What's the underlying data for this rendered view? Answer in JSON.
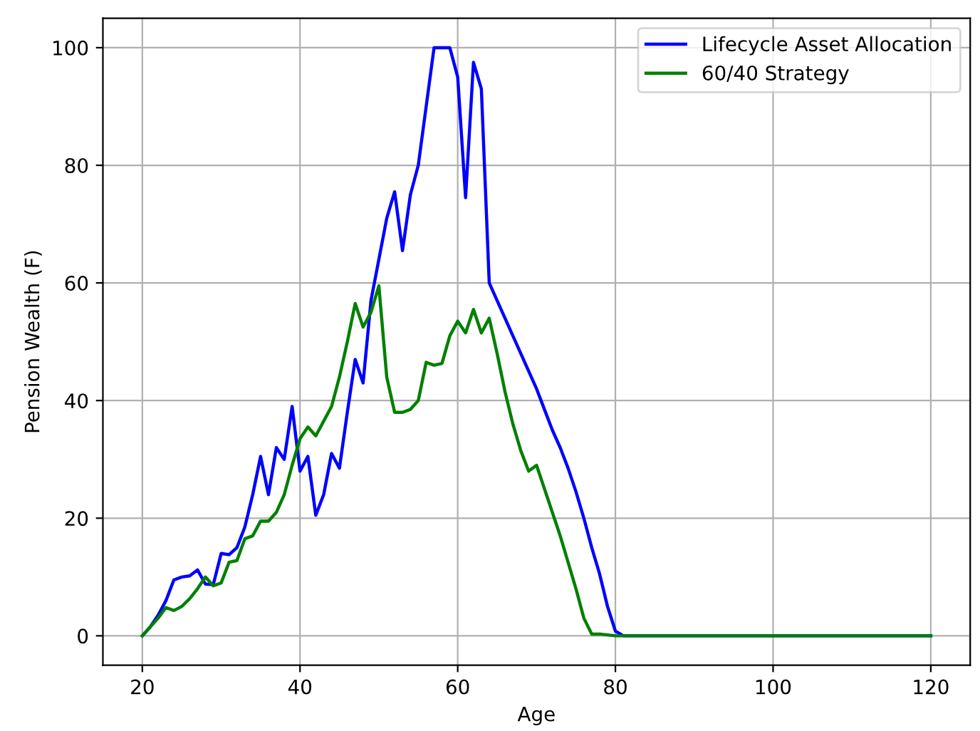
{
  "chart_data": {
    "type": "line",
    "xlabel": "Age",
    "ylabel": "Pension Wealth (F)",
    "xlim": [
      15,
      125
    ],
    "ylim": [
      -5,
      105
    ],
    "xticks": [
      20,
      40,
      60,
      80,
      100,
      120
    ],
    "yticks": [
      0,
      20,
      40,
      60,
      80,
      100
    ],
    "grid": true,
    "legend": "top right",
    "marker": "none",
    "line_style": "solid",
    "series": [
      {
        "name": "Lifecycle Asset Allocation",
        "color": "#0000ff",
        "x": [
          20,
          21,
          22,
          23,
          24,
          25,
          26,
          27,
          28,
          29,
          30,
          31,
          32,
          33,
          34,
          35,
          36,
          37,
          38,
          39,
          40,
          41,
          42,
          43,
          44,
          45,
          46,
          47,
          48,
          49,
          50,
          51,
          52,
          53,
          54,
          55,
          56,
          57,
          58,
          59,
          60,
          61,
          62,
          63,
          64,
          65,
          66,
          67,
          68,
          69,
          70,
          71,
          72,
          73,
          74,
          75,
          76,
          77,
          78,
          79,
          80,
          81,
          120
        ],
        "values": [
          0,
          1.5,
          3.5,
          6,
          9.5,
          10,
          10.2,
          11.2,
          8.8,
          8.7,
          14,
          13.8,
          15,
          18.5,
          24,
          30.5,
          24,
          32,
          30,
          39,
          28,
          30.5,
          20.5,
          24,
          31,
          28.5,
          38,
          47,
          43,
          57,
          64,
          71,
          75.5,
          65.5,
          75,
          80,
          90,
          100,
          100,
          100,
          95,
          74.5,
          97.5,
          93,
          60,
          57,
          54,
          51,
          48,
          45,
          42,
          38.5,
          35,
          32,
          28.5,
          24.5,
          20,
          15,
          10.5,
          5,
          0.8,
          0,
          0
        ]
      },
      {
        "name": "60/40 Strategy",
        "color": "#008000",
        "x": [
          20,
          21,
          22,
          23,
          24,
          25,
          26,
          27,
          28,
          29,
          30,
          31,
          32,
          33,
          34,
          35,
          36,
          37,
          38,
          39,
          40,
          41,
          42,
          43,
          44,
          45,
          46,
          47,
          48,
          49,
          50,
          51,
          52,
          53,
          54,
          55,
          56,
          57,
          58,
          59,
          60,
          61,
          62,
          63,
          64,
          65,
          66,
          67,
          68,
          69,
          70,
          71,
          72,
          73,
          74,
          75,
          76,
          77,
          78,
          80,
          120
        ],
        "values": [
          0,
          1.5,
          3,
          4.8,
          4.3,
          5,
          6.3,
          8,
          10,
          8.5,
          9,
          12.5,
          12.8,
          16.5,
          17,
          19.5,
          19.5,
          21,
          24,
          29,
          33.5,
          35.5,
          34,
          36.5,
          39,
          44,
          50,
          56.5,
          52.5,
          55,
          59.5,
          44,
          38,
          38,
          38.5,
          40,
          46.5,
          46,
          46.3,
          51,
          53.5,
          51.5,
          55.5,
          51.5,
          54,
          48,
          41.5,
          36,
          31.5,
          28,
          29,
          25,
          21,
          17,
          12.5,
          8,
          3,
          0.3,
          0.3,
          0,
          0
        ]
      }
    ]
  }
}
